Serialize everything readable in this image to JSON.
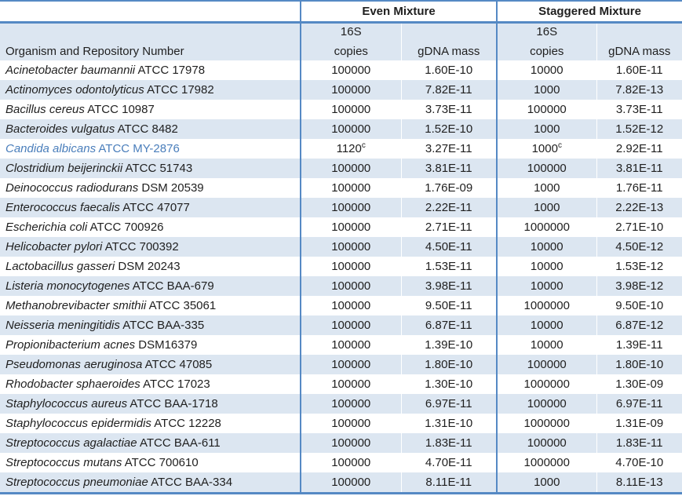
{
  "colors": {
    "border_blue": "#5589c4",
    "row_stripe": "#dce6f1",
    "body_text": "#1f1f1f",
    "highlight_organism_text": "#4a7ebb"
  },
  "header": {
    "even_mixture": "Even Mixture",
    "staggered_mixture": "Staggered Mixture",
    "organism_column": "Organism and Repository Number",
    "copies_line1": "16S",
    "copies_line2": "copies",
    "gdna_label": "gDNA mass"
  },
  "rows": [
    {
      "organism": "Acinetobacter baumannii",
      "repository": "ATCC 17978",
      "even_copies": "100000",
      "even_copies_note": "",
      "even_gdna": "1.60E-10",
      "staggered_copies": "10000",
      "staggered_copies_note": "",
      "staggered_gdna": "1.60E-11",
      "organism_color": "default"
    },
    {
      "organism": "Actinomyces odontolyticus",
      "repository": "ATCC 17982",
      "even_copies": "100000",
      "even_copies_note": "",
      "even_gdna": "7.82E-11",
      "staggered_copies": "1000",
      "staggered_copies_note": "",
      "staggered_gdna": "7.82E-13",
      "organism_color": "default"
    },
    {
      "organism": "Bacillus cereus",
      "repository": "ATCC 10987",
      "even_copies": "100000",
      "even_copies_note": "",
      "even_gdna": "3.73E-11",
      "staggered_copies": "100000",
      "staggered_copies_note": "",
      "staggered_gdna": "3.73E-11",
      "organism_color": "default"
    },
    {
      "organism": "Bacteroides vulgatus",
      "repository": "ATCC 8482",
      "even_copies": "100000",
      "even_copies_note": "",
      "even_gdna": "1.52E-10",
      "staggered_copies": "1000",
      "staggered_copies_note": "",
      "staggered_gdna": "1.52E-12",
      "organism_color": "default"
    },
    {
      "organism": "Candida albicans",
      "repository": "ATCC MY-2876",
      "even_copies": "1120",
      "even_copies_note": "c",
      "even_gdna": "3.27E-11",
      "staggered_copies": "1000",
      "staggered_copies_note": "c",
      "staggered_gdna": "2.92E-11",
      "organism_color": "blue"
    },
    {
      "organism": "Clostridium beijerinckii",
      "repository": "ATCC 51743",
      "even_copies": "100000",
      "even_copies_note": "",
      "even_gdna": "3.81E-11",
      "staggered_copies": "100000",
      "staggered_copies_note": "",
      "staggered_gdna": "3.81E-11",
      "organism_color": "default"
    },
    {
      "organism": "Deinococcus radiodurans",
      "repository": "DSM 20539",
      "even_copies": "100000",
      "even_copies_note": "",
      "even_gdna": "1.76E-09",
      "staggered_copies": "1000",
      "staggered_copies_note": "",
      "staggered_gdna": "1.76E-11",
      "organism_color": "default"
    },
    {
      "organism": "Enterococcus faecalis",
      "repository": "ATCC 47077",
      "even_copies": "100000",
      "even_copies_note": "",
      "even_gdna": "2.22E-11",
      "staggered_copies": "1000",
      "staggered_copies_note": "",
      "staggered_gdna": "2.22E-13",
      "organism_color": "default"
    },
    {
      "organism": "Escherichia coli",
      "repository": "ATCC 700926",
      "even_copies": "100000",
      "even_copies_note": "",
      "even_gdna": "2.71E-11",
      "staggered_copies": "1000000",
      "staggered_copies_note": "",
      "staggered_gdna": "2.71E-10",
      "organism_color": "default"
    },
    {
      "organism": "Helicobacter pylori",
      "repository": "ATCC 700392",
      "even_copies": "100000",
      "even_copies_note": "",
      "even_gdna": "4.50E-11",
      "staggered_copies": "10000",
      "staggered_copies_note": "",
      "staggered_gdna": "4.50E-12",
      "organism_color": "default"
    },
    {
      "organism": "Lactobacillus gasseri",
      "repository": "DSM 20243",
      "even_copies": "100000",
      "even_copies_note": "",
      "even_gdna": "1.53E-11",
      "staggered_copies": "10000",
      "staggered_copies_note": "",
      "staggered_gdna": "1.53E-12",
      "organism_color": "default"
    },
    {
      "organism": "Listeria monocytogenes",
      "repository": "ATCC BAA-679",
      "even_copies": "100000",
      "even_copies_note": "",
      "even_gdna": "3.98E-11",
      "staggered_copies": "10000",
      "staggered_copies_note": "",
      "staggered_gdna": "3.98E-12",
      "organism_color": "default"
    },
    {
      "organism": "Methanobrevibacter smithii",
      "repository": "ATCC 35061",
      "even_copies": "100000",
      "even_copies_note": "",
      "even_gdna": "9.50E-11",
      "staggered_copies": "1000000",
      "staggered_copies_note": "",
      "staggered_gdna": "9.50E-10",
      "organism_color": "default"
    },
    {
      "organism": "Neisseria meningitidis",
      "repository": "ATCC BAA-335",
      "even_copies": "100000",
      "even_copies_note": "",
      "even_gdna": "6.87E-11",
      "staggered_copies": "10000",
      "staggered_copies_note": "",
      "staggered_gdna": "6.87E-12",
      "organism_color": "default"
    },
    {
      "organism": "Propionibacterium acnes",
      "repository": "DSM16379",
      "even_copies": "100000",
      "even_copies_note": "",
      "even_gdna": "1.39E-10",
      "staggered_copies": "10000",
      "staggered_copies_note": "",
      "staggered_gdna": "1.39E-11",
      "organism_color": "default"
    },
    {
      "organism": "Pseudomonas aeruginosa",
      "repository": "ATCC 47085",
      "even_copies": "100000",
      "even_copies_note": "",
      "even_gdna": "1.80E-10",
      "staggered_copies": "100000",
      "staggered_copies_note": "",
      "staggered_gdna": "1.80E-10",
      "organism_color": "default"
    },
    {
      "organism": "Rhodobacter sphaeroides",
      "repository": "ATCC 17023",
      "even_copies": "100000",
      "even_copies_note": "",
      "even_gdna": "1.30E-10",
      "staggered_copies": "1000000",
      "staggered_copies_note": "",
      "staggered_gdna": "1.30E-09",
      "organism_color": "default"
    },
    {
      "organism": "Staphylococcus aureus",
      "repository": "ATCC BAA-1718",
      "even_copies": "100000",
      "even_copies_note": "",
      "even_gdna": "6.97E-11",
      "staggered_copies": "100000",
      "staggered_copies_note": "",
      "staggered_gdna": "6.97E-11",
      "organism_color": "default"
    },
    {
      "organism": "Staphylococcus epidermidis",
      "repository": "ATCC 12228",
      "even_copies": "100000",
      "even_copies_note": "",
      "even_gdna": "1.31E-10",
      "staggered_copies": "1000000",
      "staggered_copies_note": "",
      "staggered_gdna": "1.31E-09",
      "organism_color": "default"
    },
    {
      "organism": "Streptococcus agalactiae",
      "repository": "ATCC BAA-611",
      "even_copies": "100000",
      "even_copies_note": "",
      "even_gdna": "1.83E-11",
      "staggered_copies": "100000",
      "staggered_copies_note": "",
      "staggered_gdna": "1.83E-11",
      "organism_color": "default"
    },
    {
      "organism": "Streptococcus mutans",
      "repository": "ATCC 700610",
      "even_copies": "100000",
      "even_copies_note": "",
      "even_gdna": "4.70E-11",
      "staggered_copies": "1000000",
      "staggered_copies_note": "",
      "staggered_gdna": "4.70E-10",
      "organism_color": "default"
    },
    {
      "organism": "Streptococcus pneumoniae",
      "repository": "ATCC BAA-334",
      "even_copies": "100000",
      "even_copies_note": "",
      "even_gdna": "8.11E-11",
      "staggered_copies": "1000",
      "staggered_copies_note": "",
      "staggered_gdna": "8.11E-13",
      "organism_color": "default"
    }
  ]
}
